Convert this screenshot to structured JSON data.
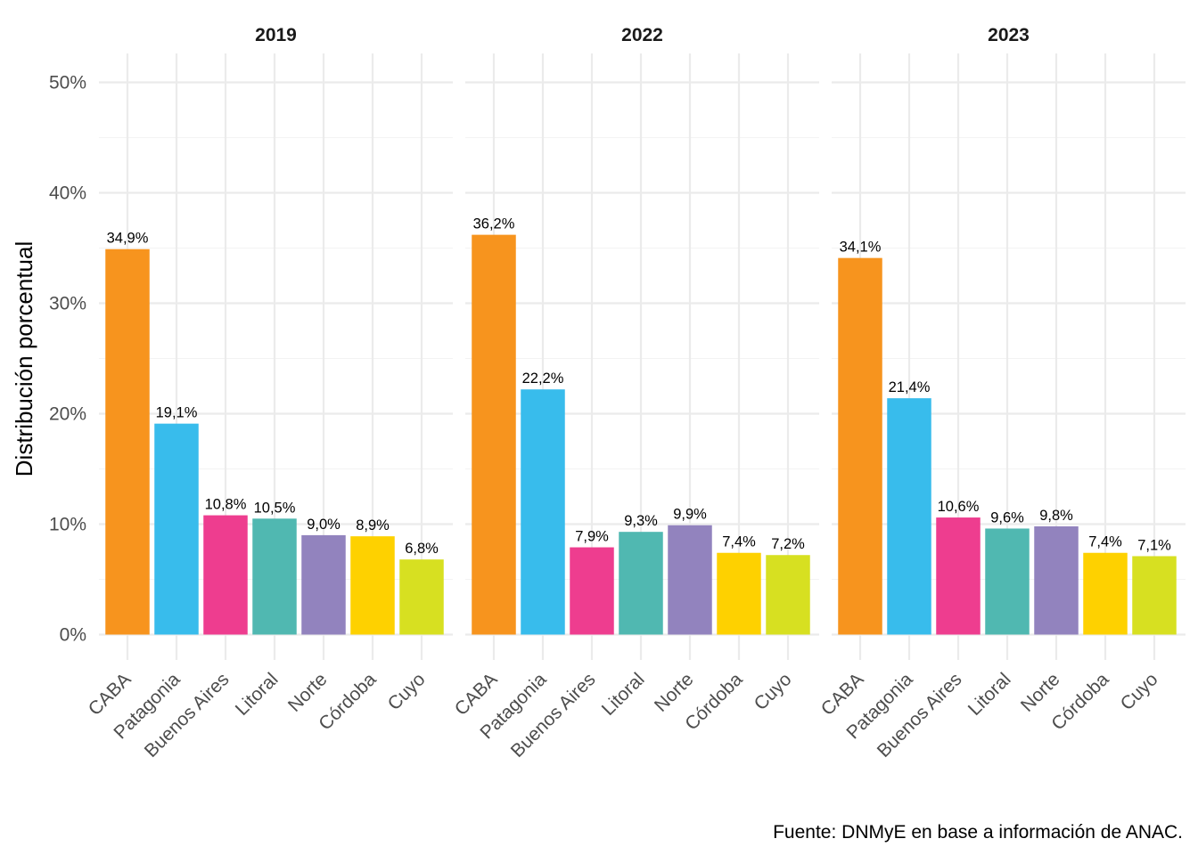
{
  "chart_data": {
    "type": "bar",
    "ylabel": "Distribución porcentual",
    "xlabel": "",
    "ylim": [
      0,
      50
    ],
    "y_ticks": [
      "0%",
      "10%",
      "20%",
      "30%",
      "40%",
      "50%"
    ],
    "y_tick_values": [
      0,
      10,
      20,
      30,
      40,
      50
    ],
    "grid": true,
    "categories": [
      "CABA",
      "Patagonia",
      "Buenos Aires",
      "Litoral",
      "Norte",
      "Córdoba",
      "Cuyo"
    ],
    "category_colors": [
      "#F7941E",
      "#38BCEC",
      "#EE3D8F",
      "#50B8B1",
      "#9283BE",
      "#FED100",
      "#D7E021"
    ],
    "caption": "Fuente: DNMyE en base a información de ANAC.",
    "panels": [
      {
        "title": "2019",
        "values": [
          34.9,
          19.1,
          10.8,
          10.5,
          9.0,
          8.9,
          6.8
        ],
        "labels": [
          "34,9%",
          "19,1%",
          "10,8%",
          "10,5%",
          "9,0%",
          "8,9%",
          "6,8%"
        ]
      },
      {
        "title": "2022",
        "values": [
          36.2,
          22.2,
          7.9,
          9.3,
          9.9,
          7.4,
          7.2
        ],
        "labels": [
          "36,2%",
          "22,2%",
          "7,9%",
          "9,3%",
          "9,9%",
          "7,4%",
          "7,2%"
        ]
      },
      {
        "title": "2023",
        "values": [
          34.1,
          21.4,
          10.6,
          9.6,
          9.8,
          7.4,
          7.1
        ],
        "labels": [
          "34,1%",
          "21,4%",
          "10,6%",
          "9,6%",
          "9,8%",
          "7,4%",
          "7,1%"
        ]
      }
    ]
  }
}
